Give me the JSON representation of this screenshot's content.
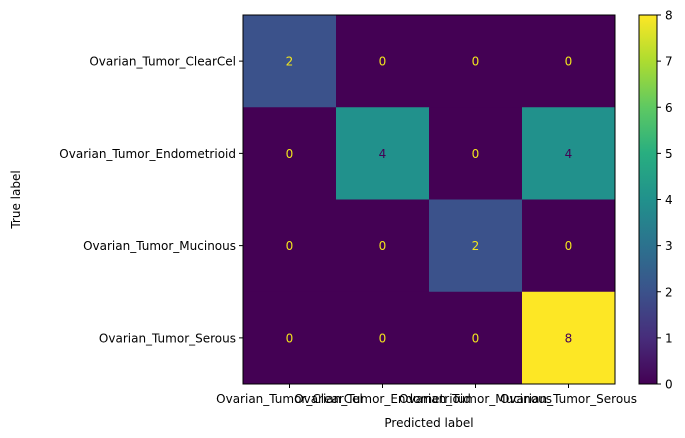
{
  "chart_data": {
    "type": "heatmap",
    "title": "",
    "xlabel": "Predicted label",
    "ylabel": "True label",
    "row_labels": [
      "Ovarian_Tumor_ClearCel",
      "Ovarian_Tumor_Endometrioid",
      "Ovarian_Tumor_Mucinous",
      "Ovarian_Tumor_Serous"
    ],
    "col_labels": [
      "Ovarian_Tumor_ClearCel",
      "Ovarian_Tumor_Endometrioid",
      "Ovarian_Tumor_Mucinous",
      "Ovarian_Tumor_Serous"
    ],
    "values": [
      [
        2,
        0,
        0,
        0
      ],
      [
        0,
        4,
        0,
        4
      ],
      [
        0,
        0,
        2,
        0
      ],
      [
        0,
        0,
        0,
        8
      ]
    ],
    "colormap": "viridis",
    "vmin": 0,
    "vmax": 8,
    "colorbar_ticks": [
      0,
      1,
      2,
      3,
      4,
      5,
      6,
      7,
      8
    ],
    "colors": {
      "text_on_dark": "#f1e51d",
      "text_on_light": "#440154"
    }
  }
}
